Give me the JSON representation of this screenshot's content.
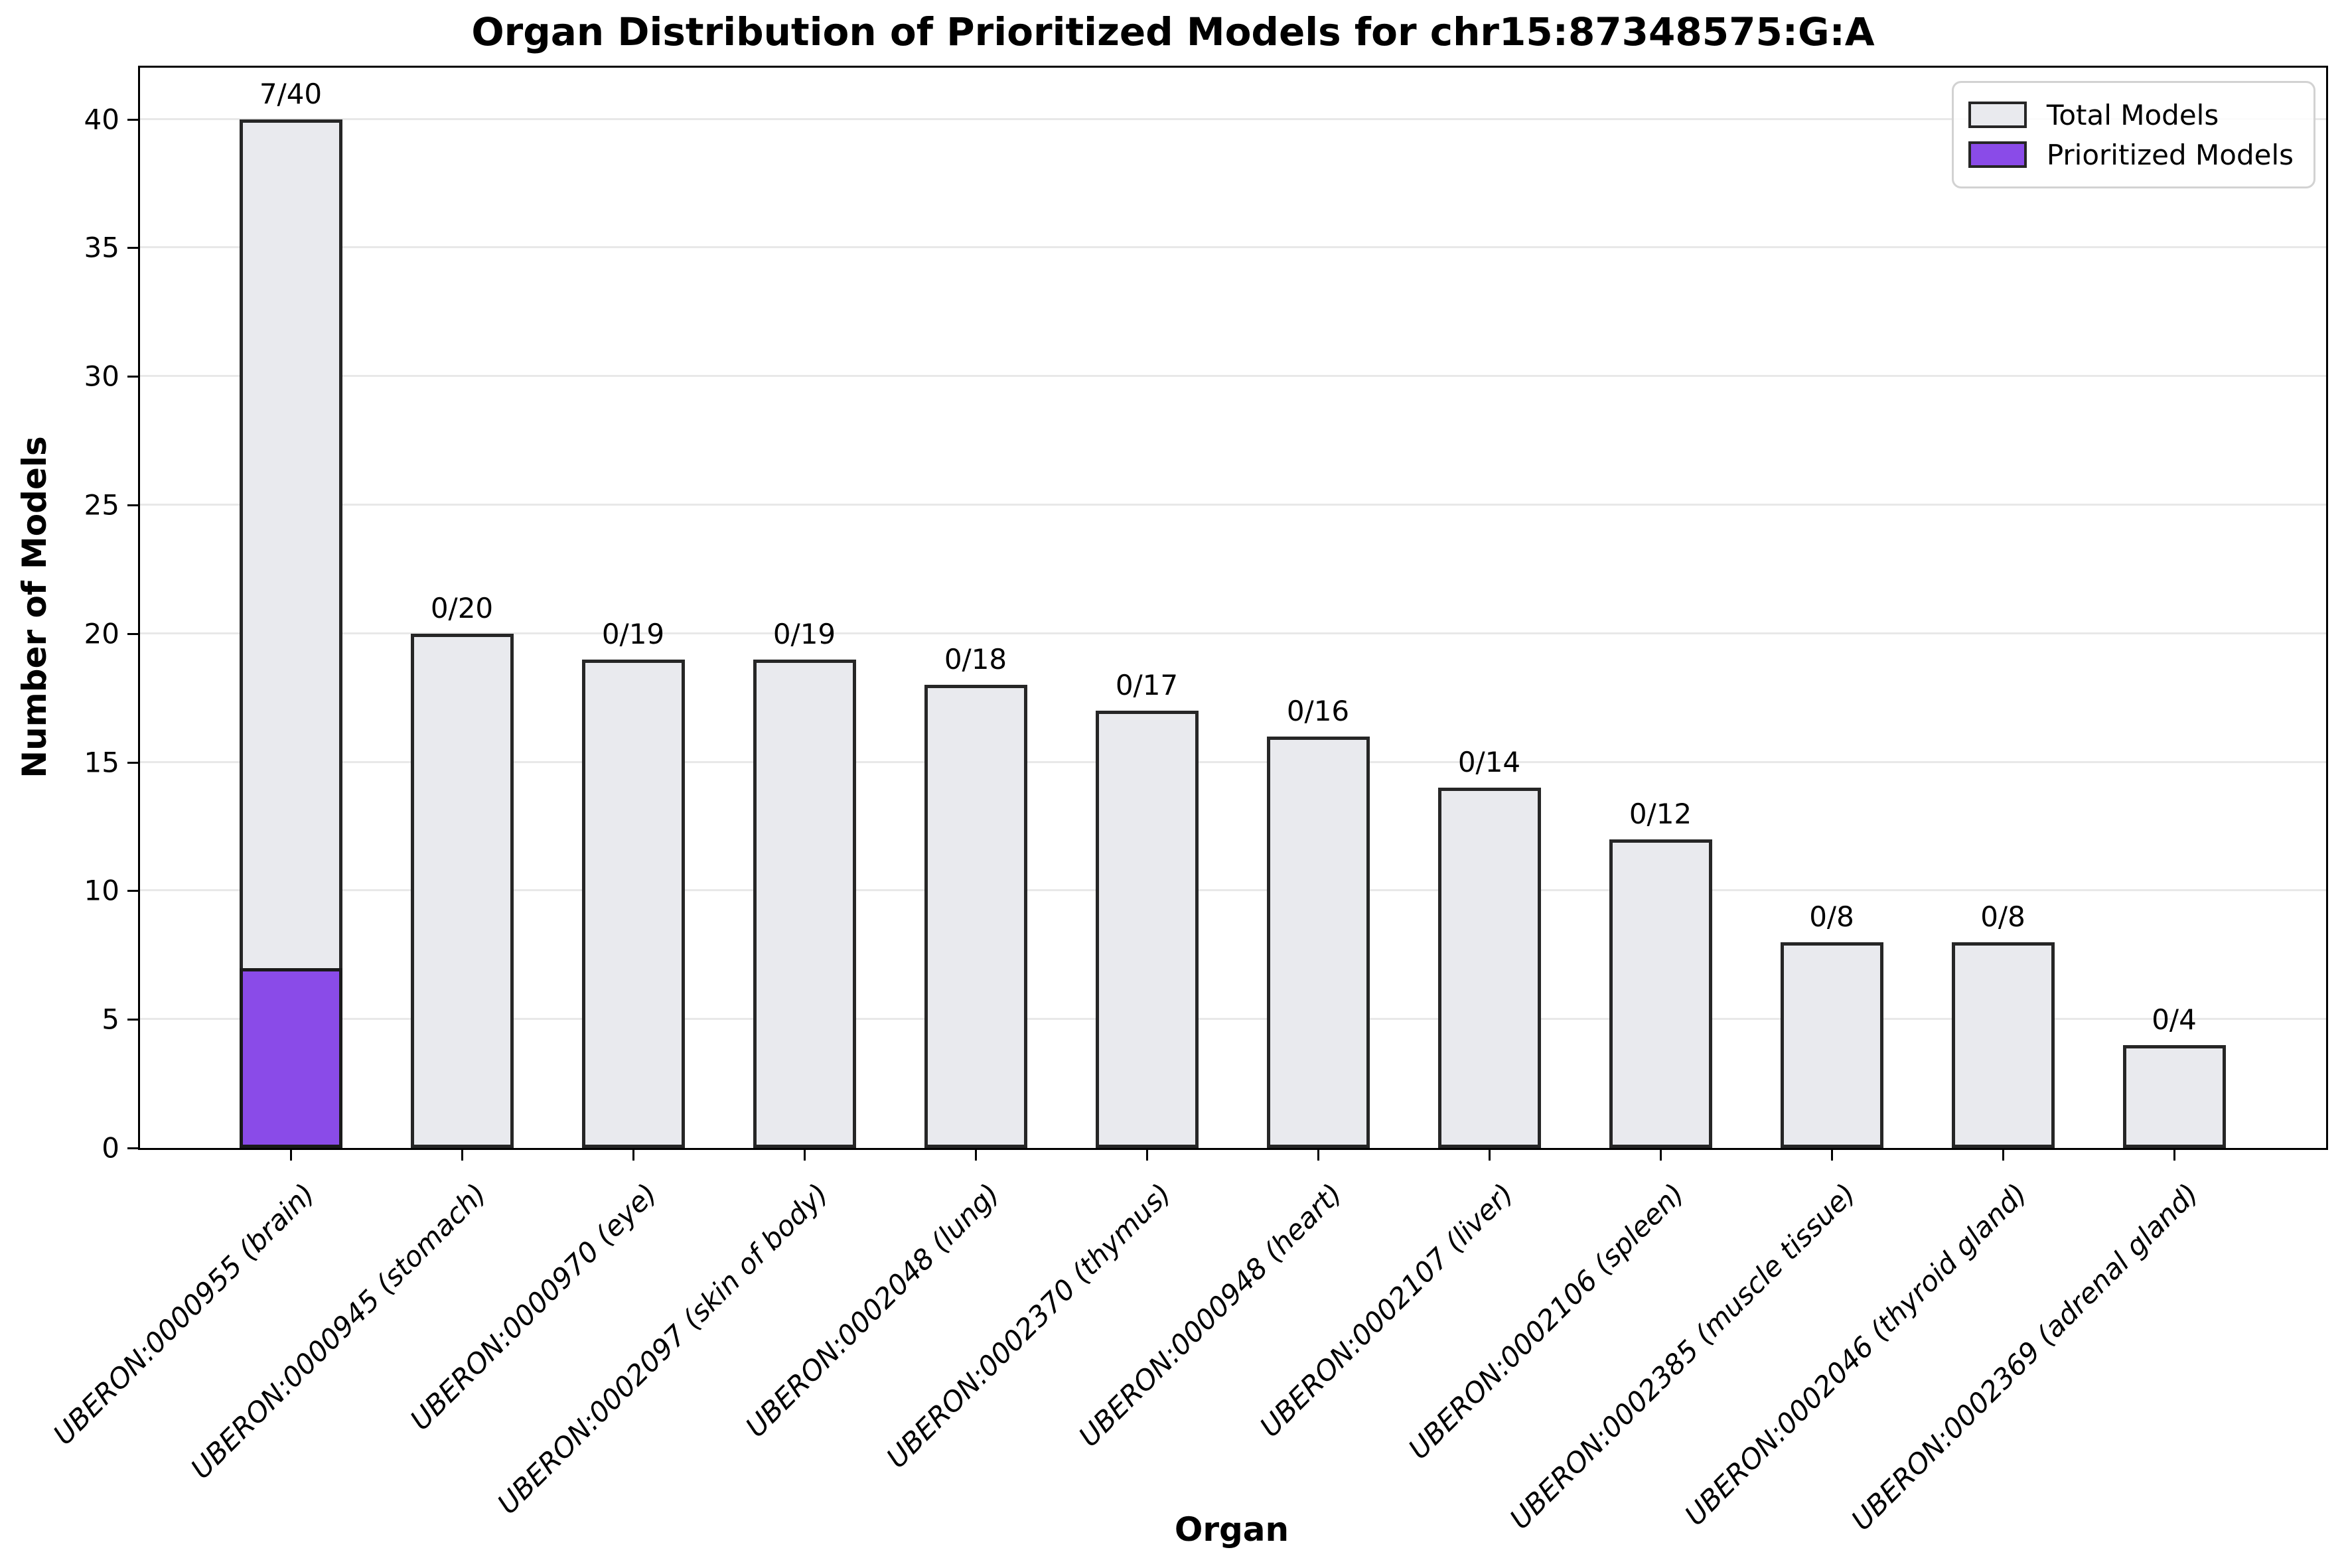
{
  "title": "Organ Distribution of Prioritized Models for chr15:87348575:G:A",
  "axes": {
    "ylabel": "Number of Models",
    "xlabel": "Organ",
    "yticks": [
      0,
      5,
      10,
      15,
      20,
      25,
      30,
      35,
      40
    ]
  },
  "legend": {
    "items": [
      {
        "label": "Total Models",
        "color": "#e9eaee"
      },
      {
        "label": "Prioritized Models",
        "color": "#8a4be8"
      }
    ],
    "position": "upper right"
  },
  "colors": {
    "total_fill": "#e9eaee",
    "prioritized_fill": "#8a4be8",
    "bar_edge": "#262626",
    "grid": "#e8e8e8",
    "spine": "#000000"
  },
  "chart_data": {
    "type": "bar",
    "title": "Organ Distribution of Prioritized Models for chr15:87348575:G:A",
    "xlabel": "Organ",
    "ylabel": "Number of Models",
    "ylim": [
      0,
      42
    ],
    "yticks": [
      0,
      5,
      10,
      15,
      20,
      25,
      30,
      35,
      40
    ],
    "grid": "y",
    "legend_position": "upper right",
    "categories": [
      "UBERON:0000955 (brain)",
      "UBERON:0000945 (stomach)",
      "UBERON:0000970 (eye)",
      "UBERON:0002097 (skin of body)",
      "UBERON:0002048 (lung)",
      "UBERON:0002370 (thymus)",
      "UBERON:0000948 (heart)",
      "UBERON:0002107 (liver)",
      "UBERON:0002106 (spleen)",
      "UBERON:0002385 (muscle tissue)",
      "UBERON:0002046 (thyroid gland)",
      "UBERON:0002369 (adrenal gland)"
    ],
    "series": [
      {
        "name": "Total Models",
        "values": [
          40,
          20,
          19,
          19,
          18,
          17,
          16,
          14,
          12,
          8,
          8,
          4
        ]
      },
      {
        "name": "Prioritized Models",
        "values": [
          7,
          0,
          0,
          0,
          0,
          0,
          0,
          0,
          0,
          0,
          0,
          0
        ]
      }
    ],
    "annotations": [
      "7/40",
      "0/20",
      "0/19",
      "0/19",
      "0/18",
      "0/17",
      "0/16",
      "0/14",
      "0/12",
      "0/8",
      "0/8",
      "0/4"
    ]
  }
}
